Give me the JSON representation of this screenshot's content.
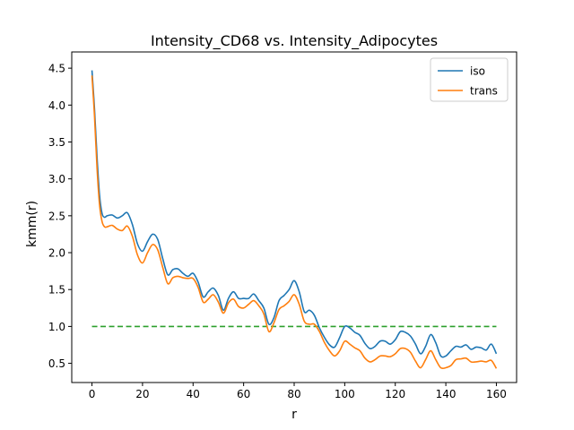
{
  "chart_data": {
    "type": "line",
    "title": "Intensity_CD68 vs. Intensity_Adipocytes",
    "xlabel": "r",
    "ylabel": "kmm(r)",
    "xlim": [
      -8,
      168
    ],
    "ylim": [
      0.24,
      4.72
    ],
    "xticks": [
      0,
      20,
      40,
      60,
      80,
      100,
      120,
      140,
      160
    ],
    "yticks": [
      0.5,
      1.0,
      1.5,
      2.0,
      2.5,
      3.0,
      3.5,
      4.0,
      4.5
    ],
    "xtick_labels": [
      "0",
      "20",
      "40",
      "60",
      "80",
      "100",
      "120",
      "140",
      "160"
    ],
    "ytick_labels": [
      "0.5",
      "1.0",
      "1.5",
      "2.0",
      "2.5",
      "3.0",
      "3.5",
      "4.0",
      "4.5"
    ],
    "grid": false,
    "legend_position": "top-right",
    "x": [
      0,
      1,
      2,
      3,
      4,
      5,
      6,
      8,
      10,
      12,
      14,
      16,
      18,
      20,
      22,
      24,
      26,
      28,
      30,
      32,
      34,
      36,
      38,
      40,
      42,
      44,
      46,
      48,
      50,
      52,
      54,
      56,
      58,
      60,
      62,
      64,
      66,
      68,
      70,
      72,
      74,
      76,
      78,
      80,
      82,
      84,
      86,
      88,
      90,
      92,
      94,
      96,
      98,
      100,
      102,
      104,
      106,
      108,
      110,
      112,
      114,
      116,
      118,
      120,
      122,
      124,
      126,
      128,
      130,
      132,
      134,
      136,
      138,
      140,
      142,
      144,
      146,
      148,
      150,
      152,
      154,
      156,
      158,
      160
    ],
    "series": [
      {
        "name": "iso",
        "color": "#1f77b4",
        "values": [
          4.47,
          3.95,
          3.3,
          2.78,
          2.53,
          2.48,
          2.5,
          2.51,
          2.47,
          2.5,
          2.54,
          2.38,
          2.12,
          2.02,
          2.15,
          2.25,
          2.18,
          1.92,
          1.7,
          1.77,
          1.78,
          1.72,
          1.68,
          1.72,
          1.6,
          1.4,
          1.47,
          1.52,
          1.42,
          1.22,
          1.38,
          1.47,
          1.38,
          1.38,
          1.38,
          1.44,
          1.35,
          1.25,
          1.03,
          1.12,
          1.35,
          1.42,
          1.5,
          1.62,
          1.47,
          1.2,
          1.22,
          1.15,
          0.98,
          0.85,
          0.75,
          0.72,
          0.85,
          1.0,
          0.98,
          0.92,
          0.88,
          0.77,
          0.7,
          0.73,
          0.8,
          0.8,
          0.76,
          0.82,
          0.93,
          0.92,
          0.87,
          0.76,
          0.63,
          0.73,
          0.89,
          0.78,
          0.6,
          0.6,
          0.67,
          0.73,
          0.72,
          0.75,
          0.69,
          0.72,
          0.71,
          0.68,
          0.76,
          0.63
        ]
      },
      {
        "name": "trans",
        "color": "#ff7f0e",
        "values": [
          4.4,
          3.85,
          3.15,
          2.65,
          2.42,
          2.35,
          2.35,
          2.37,
          2.32,
          2.3,
          2.36,
          2.22,
          1.97,
          1.86,
          2.0,
          2.11,
          2.04,
          1.8,
          1.58,
          1.66,
          1.68,
          1.66,
          1.65,
          1.65,
          1.53,
          1.33,
          1.37,
          1.43,
          1.33,
          1.18,
          1.32,
          1.37,
          1.27,
          1.25,
          1.3,
          1.35,
          1.28,
          1.17,
          0.93,
          1.05,
          1.23,
          1.28,
          1.34,
          1.43,
          1.3,
          1.07,
          1.03,
          1.03,
          0.93,
          0.78,
          0.67,
          0.6,
          0.67,
          0.8,
          0.76,
          0.71,
          0.67,
          0.57,
          0.52,
          0.55,
          0.6,
          0.6,
          0.59,
          0.63,
          0.7,
          0.7,
          0.65,
          0.53,
          0.44,
          0.55,
          0.67,
          0.55,
          0.44,
          0.44,
          0.47,
          0.55,
          0.56,
          0.57,
          0.52,
          0.52,
          0.53,
          0.52,
          0.54,
          0.43
        ]
      }
    ],
    "reference_line": {
      "y": 1.0,
      "color": "#2ca02c",
      "style": "dashed"
    }
  }
}
